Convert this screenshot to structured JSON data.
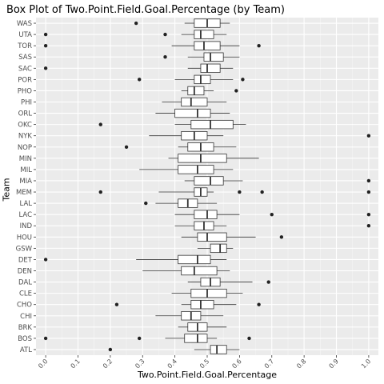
{
  "chart_data": {
    "type": "boxplot",
    "title": "Box Plot of Two.Point.Field.Goal.Percentage (by Team)",
    "xlabel": "Two.Point.Field.Goal.Percentage",
    "ylabel": "Team",
    "xlim": [
      -0.03,
      1.03
    ],
    "x_ticks": [
      "0.0",
      "0.1",
      "0.2",
      "0.3",
      "0.4",
      "0.5",
      "0.6",
      "0.7",
      "0.8",
      "0.9",
      "1.0"
    ],
    "x_tick_values": [
      0.0,
      0.1,
      0.2,
      0.3,
      0.4,
      0.5,
      0.6,
      0.7,
      0.8,
      0.9,
      1.0
    ],
    "grid": true,
    "background": "#EBEBEB",
    "grid_major_color": "#FFFFFF",
    "box_fill": "#FFFFFF",
    "line_color": "#333333",
    "outlier_color": "#222222",
    "categories": [
      "WAS",
      "UTA",
      "TOR",
      "SAS",
      "SAC",
      "POR",
      "PHO",
      "PHI",
      "ORL",
      "OKC",
      "NYK",
      "NOP",
      "MIN",
      "MIL",
      "MIA",
      "MEM",
      "LAL",
      "LAC",
      "IND",
      "HOU",
      "GSW",
      "DET",
      "DEN",
      "DAL",
      "CLE",
      "CHO",
      "CHI",
      "BRK",
      "BOS",
      "ATL"
    ],
    "boxes": [
      {
        "team": "WAS",
        "lo": 0.43,
        "q1": 0.46,
        "med": 0.5,
        "q3": 0.54,
        "hi": 0.57,
        "outliers": [
          0.28
        ]
      },
      {
        "team": "UTA",
        "lo": 0.42,
        "q1": 0.46,
        "med": 0.48,
        "q3": 0.52,
        "hi": 0.56,
        "outliers": [
          0.0,
          0.37
        ]
      },
      {
        "team": "TOR",
        "lo": 0.39,
        "q1": 0.46,
        "med": 0.49,
        "q3": 0.54,
        "hi": 0.6,
        "outliers": [
          0.0,
          0.66
        ]
      },
      {
        "team": "SAS",
        "lo": 0.44,
        "q1": 0.49,
        "med": 0.51,
        "q3": 0.55,
        "hi": 0.6,
        "outliers": [
          0.37
        ]
      },
      {
        "team": "SAC",
        "lo": 0.44,
        "q1": 0.48,
        "med": 0.5,
        "q3": 0.54,
        "hi": 0.58,
        "outliers": [
          0.0
        ]
      },
      {
        "team": "POR",
        "lo": 0.4,
        "q1": 0.46,
        "med": 0.48,
        "q3": 0.51,
        "hi": 0.58,
        "outliers": [
          0.29,
          0.61
        ]
      },
      {
        "team": "PHO",
        "lo": 0.42,
        "q1": 0.44,
        "med": 0.46,
        "q3": 0.49,
        "hi": 0.52,
        "outliers": [
          0.59
        ]
      },
      {
        "team": "PHI",
        "lo": 0.36,
        "q1": 0.42,
        "med": 0.45,
        "q3": 0.5,
        "hi": 0.56,
        "outliers": []
      },
      {
        "team": "ORL",
        "lo": 0.34,
        "q1": 0.4,
        "med": 0.47,
        "q3": 0.51,
        "hi": 0.57,
        "outliers": []
      },
      {
        "team": "OKC",
        "lo": 0.4,
        "q1": 0.45,
        "med": 0.51,
        "q3": 0.58,
        "hi": 0.62,
        "outliers": [
          0.17
        ]
      },
      {
        "team": "NYK",
        "lo": 0.32,
        "q1": 0.42,
        "med": 0.46,
        "q3": 0.5,
        "hi": 0.55,
        "outliers": [
          1.0
        ]
      },
      {
        "team": "NOP",
        "lo": 0.41,
        "q1": 0.44,
        "med": 0.48,
        "q3": 0.52,
        "hi": 0.59,
        "outliers": [
          0.25
        ]
      },
      {
        "team": "MIN",
        "lo": 0.38,
        "q1": 0.41,
        "med": 0.48,
        "q3": 0.56,
        "hi": 0.66,
        "outliers": []
      },
      {
        "team": "MIL",
        "lo": 0.29,
        "q1": 0.41,
        "med": 0.47,
        "q3": 0.52,
        "hi": 0.58,
        "outliers": []
      },
      {
        "team": "MIA",
        "lo": 0.43,
        "q1": 0.46,
        "med": 0.51,
        "q3": 0.55,
        "hi": 0.61,
        "outliers": [
          1.0
        ]
      },
      {
        "team": "MEM",
        "lo": 0.35,
        "q1": 0.46,
        "med": 0.48,
        "q3": 0.5,
        "hi": 0.52,
        "outliers": [
          0.17,
          0.6,
          0.67,
          1.0
        ]
      },
      {
        "team": "LAL",
        "lo": 0.34,
        "q1": 0.41,
        "med": 0.44,
        "q3": 0.47,
        "hi": 0.53,
        "outliers": [
          0.31
        ]
      },
      {
        "team": "LAC",
        "lo": 0.4,
        "q1": 0.46,
        "med": 0.5,
        "q3": 0.53,
        "hi": 0.6,
        "outliers": [
          0.7,
          1.0
        ]
      },
      {
        "team": "IND",
        "lo": 0.4,
        "q1": 0.46,
        "med": 0.49,
        "q3": 0.52,
        "hi": 0.56,
        "outliers": [
          1.0
        ]
      },
      {
        "team": "HOU",
        "lo": 0.42,
        "q1": 0.47,
        "med": 0.5,
        "q3": 0.56,
        "hi": 0.65,
        "outliers": [
          0.73
        ]
      },
      {
        "team": "GSW",
        "lo": 0.47,
        "q1": 0.51,
        "med": 0.54,
        "q3": 0.56,
        "hi": 0.58,
        "outliers": []
      },
      {
        "team": "DET",
        "lo": 0.28,
        "q1": 0.41,
        "med": 0.47,
        "q3": 0.51,
        "hi": 0.56,
        "outliers": [
          0.0
        ]
      },
      {
        "team": "DEN",
        "lo": 0.3,
        "q1": 0.42,
        "med": 0.46,
        "q3": 0.53,
        "hi": 0.57,
        "outliers": []
      },
      {
        "team": "DAL",
        "lo": 0.44,
        "q1": 0.48,
        "med": 0.51,
        "q3": 0.54,
        "hi": 0.64,
        "outliers": [
          0.69
        ]
      },
      {
        "team": "CLE",
        "lo": 0.39,
        "q1": 0.45,
        "med": 0.5,
        "q3": 0.56,
        "hi": 0.61,
        "outliers": []
      },
      {
        "team": "CHO",
        "lo": 0.42,
        "q1": 0.45,
        "med": 0.48,
        "q3": 0.52,
        "hi": 0.59,
        "outliers": [
          0.22,
          0.66
        ]
      },
      {
        "team": "CHI",
        "lo": 0.34,
        "q1": 0.42,
        "med": 0.45,
        "q3": 0.48,
        "hi": 0.55,
        "outliers": []
      },
      {
        "team": "BRK",
        "lo": 0.41,
        "q1": 0.44,
        "med": 0.47,
        "q3": 0.5,
        "hi": 0.56,
        "outliers": []
      },
      {
        "team": "BOS",
        "lo": 0.37,
        "q1": 0.43,
        "med": 0.47,
        "q3": 0.5,
        "hi": 0.53,
        "outliers": [
          0.0,
          0.29,
          0.63
        ]
      },
      {
        "team": "ATL",
        "lo": 0.46,
        "q1": 0.51,
        "med": 0.53,
        "q3": 0.56,
        "hi": 0.6,
        "outliers": [
          0.2
        ]
      }
    ]
  }
}
